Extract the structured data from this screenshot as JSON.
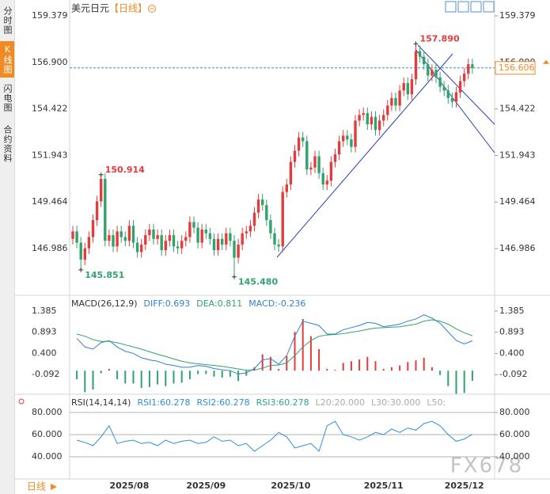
{
  "sidebar": {
    "tabs": [
      "分时图",
      "K线图",
      "闪电图",
      "合约资料"
    ]
  },
  "footer": {
    "tab": "日线"
  },
  "watermark": "FX678",
  "chart_data": [
    {
      "type": "candlestick",
      "title": "美元日元",
      "period": "【日线】",
      "up_color": "#e23c3c",
      "down_color": "#2fa36b",
      "categories": [
        null,
        null,
        null,
        null,
        null,
        null,
        null,
        null,
        null,
        null,
        null,
        null,
        null,
        null,
        "2025/08",
        null,
        null,
        null,
        null,
        null,
        null,
        null,
        null,
        null,
        null,
        null,
        null,
        null,
        null,
        null,
        null,
        null,
        null,
        "2025/09",
        null,
        null,
        null,
        null,
        null,
        null,
        null,
        null,
        null,
        null,
        null,
        null,
        null,
        null,
        null,
        null,
        null,
        null,
        null,
        null,
        "2025/10",
        null,
        null,
        null,
        null,
        null,
        null,
        null,
        null,
        null,
        null,
        null,
        null,
        null,
        null,
        null,
        null,
        null,
        null,
        null,
        null,
        null,
        null,
        "2025/11",
        null,
        null,
        null,
        null,
        null,
        null,
        null,
        null,
        null,
        null,
        null,
        null,
        null,
        null,
        null,
        null,
        null,
        null,
        null,
        "2025/12",
        null,
        null
      ],
      "open": [
        147.5,
        147.9,
        147.3,
        146.4,
        147.0,
        147.6,
        148.5,
        149.5,
        150.7,
        147.4,
        147.7,
        147.1,
        147.9,
        147.6,
        147.4,
        148.2,
        147.3,
        146.8,
        147.2,
        147.7,
        148.0,
        147.5,
        147.7,
        146.9,
        147.4,
        147.7,
        147.1,
        147.0,
        147.4,
        147.6,
        148.4,
        148.1,
        147.3,
        148.0,
        147.8,
        147.5,
        146.9,
        147.5,
        147.2,
        147.8,
        147.4,
        146.5,
        147.2,
        147.8,
        147.9,
        148.2,
        148.9,
        149.6,
        149.3,
        148.5,
        147.8,
        147.2,
        147.1,
        150.0,
        150.4,
        151.6,
        152.2,
        152.9,
        152.7,
        151.2,
        151.3,
        151.9,
        151.0,
        150.4,
        150.6,
        151.6,
        152.0,
        152.7,
        153.0,
        152.8,
        152.4,
        153.8,
        154.1,
        154.2,
        153.6,
        154.0,
        153.3,
        153.8,
        154.1,
        154.6,
        155.0,
        154.6,
        155.4,
        155.8,
        155.2,
        156.0,
        157.5,
        157.2,
        156.8,
        156.2,
        156.5,
        156.1,
        155.6,
        155.4,
        155.0,
        154.8,
        155.3,
        155.9,
        156.3,
        156.8
      ],
      "high": [
        148.2,
        148.2,
        147.6,
        147.3,
        147.9,
        148.8,
        149.8,
        150.914,
        151.0,
        148.0,
        148.0,
        148.2,
        148.2,
        147.9,
        148.5,
        148.5,
        147.6,
        147.5,
        148.0,
        148.3,
        148.3,
        148.0,
        148.0,
        147.7,
        148.0,
        148.0,
        147.4,
        147.7,
        147.9,
        148.7,
        148.7,
        148.4,
        148.3,
        148.3,
        148.1,
        147.8,
        147.8,
        147.8,
        148.1,
        148.1,
        147.7,
        147.5,
        148.1,
        148.2,
        148.5,
        149.2,
        149.9,
        149.9,
        149.6,
        148.8,
        148.1,
        147.5,
        150.3,
        150.7,
        151.9,
        152.5,
        153.2,
        153.2,
        153.0,
        151.6,
        152.2,
        152.2,
        151.3,
        150.9,
        151.9,
        152.3,
        153.0,
        153.3,
        153.3,
        153.1,
        154.1,
        154.4,
        154.5,
        154.5,
        154.3,
        154.3,
        154.1,
        154.4,
        154.9,
        155.3,
        155.3,
        155.7,
        156.1,
        156.1,
        156.3,
        157.89,
        157.8,
        157.5,
        157.1,
        156.8,
        156.8,
        156.4,
        155.9,
        155.7,
        155.3,
        155.6,
        156.2,
        156.6,
        157.1,
        157.1
      ],
      "low": [
        147.2,
        147.0,
        145.851,
        146.1,
        146.7,
        147.3,
        148.2,
        149.2,
        147.1,
        147.1,
        146.8,
        146.8,
        147.3,
        147.1,
        147.1,
        147.0,
        146.5,
        146.5,
        146.9,
        147.4,
        147.2,
        147.2,
        146.6,
        146.6,
        147.1,
        146.8,
        146.7,
        146.7,
        147.1,
        147.3,
        147.8,
        147.0,
        147.0,
        147.5,
        147.2,
        146.6,
        146.6,
        146.9,
        146.9,
        147.1,
        145.48,
        146.2,
        146.9,
        147.5,
        147.6,
        147.9,
        148.6,
        149.0,
        148.2,
        147.5,
        146.9,
        146.8,
        146.8,
        149.7,
        150.1,
        151.3,
        151.9,
        152.4,
        150.9,
        150.9,
        151.0,
        150.7,
        150.1,
        150.1,
        150.3,
        151.3,
        151.7,
        152.4,
        152.5,
        152.1,
        152.1,
        153.5,
        153.8,
        153.3,
        153.3,
        153.0,
        153.0,
        153.5,
        153.8,
        154.3,
        154.3,
        154.3,
        155.1,
        154.9,
        154.9,
        155.7,
        156.9,
        156.5,
        155.9,
        155.9,
        155.8,
        155.3,
        155.1,
        154.7,
        154.5,
        154.5,
        155.0,
        155.6,
        156.0,
        156.306
      ],
      "close": [
        147.9,
        147.3,
        146.4,
        147.0,
        147.6,
        148.5,
        149.5,
        150.7,
        147.4,
        147.7,
        147.1,
        147.9,
        147.6,
        147.4,
        148.2,
        147.3,
        146.8,
        147.2,
        147.7,
        148.0,
        147.5,
        147.7,
        146.9,
        147.4,
        147.7,
        147.1,
        147.0,
        147.4,
        147.6,
        148.4,
        148.1,
        147.3,
        148.0,
        147.8,
        147.5,
        146.9,
        147.5,
        147.2,
        147.8,
        147.4,
        146.5,
        147.2,
        147.8,
        147.9,
        148.2,
        148.9,
        149.6,
        149.3,
        148.5,
        147.8,
        147.2,
        147.1,
        150.0,
        150.4,
        151.6,
        152.2,
        152.9,
        152.7,
        151.2,
        151.3,
        151.9,
        151.0,
        150.4,
        150.6,
        151.6,
        152.0,
        152.7,
        153.0,
        152.8,
        152.4,
        153.8,
        154.1,
        154.2,
        153.6,
        154.0,
        153.3,
        153.8,
        154.1,
        154.6,
        155.0,
        154.6,
        155.4,
        155.8,
        155.2,
        156.0,
        157.5,
        157.2,
        156.8,
        156.2,
        156.5,
        156.1,
        155.6,
        155.4,
        155.0,
        154.8,
        155.3,
        155.9,
        156.3,
        156.8,
        156.606
      ],
      "ylim": [
        144.541,
        160.011
      ],
      "yticks": [
        159.379,
        {
          "value": 156.9,
          "label": "156.900"
        },
        154.422,
        151.943,
        149.464,
        146.986
      ],
      "last_price": {
        "value": 156.606,
        "label": "156.606",
        "color": "#f08a24",
        "line_color": "#3a8fb7"
      },
      "annotations": [
        {
          "value": 157.89,
          "label": "157.890"
        },
        {
          "value": 150.914,
          "label": "150.914"
        },
        {
          "value": 145.851,
          "label": "145.851"
        },
        {
          "value": 145.48,
          "label": "145.480"
        }
      ]
    },
    {
      "type": "macd",
      "title": "MACD(26,12,9)",
      "x": [
        1,
        3,
        5,
        7,
        9,
        11,
        13,
        15,
        17,
        19,
        21,
        23,
        25,
        27,
        29,
        31,
        33,
        35,
        37,
        39,
        41,
        43,
        45,
        47,
        49,
        51,
        53,
        55,
        57,
        59,
        61,
        63,
        65,
        67,
        69,
        71,
        73,
        75,
        77,
        79,
        81,
        83,
        85,
        87,
        89,
        91,
        93,
        95,
        97,
        99
      ],
      "series": [
        {
          "name": "DIFF:0.693",
          "color": "#2f7fd6",
          "style": "line",
          "values": [
            0.75,
            0.55,
            0.5,
            0.65,
            0.7,
            0.55,
            0.45,
            0.4,
            0.3,
            0.25,
            0.22,
            0.15,
            0.12,
            0.08,
            0.08,
            0.12,
            0.1,
            0.05,
            0.02,
            0.0,
            -0.08,
            -0.05,
            0.05,
            0.25,
            0.28,
            0.15,
            0.35,
            0.8,
            1.15,
            1.1,
            1.05,
            0.85,
            0.85,
            0.95,
            1.0,
            1.05,
            1.12,
            1.1,
            1.02,
            1.05,
            1.08,
            1.15,
            1.2,
            1.3,
            1.22,
            1.1,
            0.9,
            0.7,
            0.62,
            0.693
          ]
        },
        {
          "name": "DEA:0.811",
          "color": "#2fa36b",
          "style": "line",
          "values": [
            0.85,
            0.8,
            0.72,
            0.68,
            0.68,
            0.65,
            0.6,
            0.55,
            0.5,
            0.44,
            0.38,
            0.33,
            0.27,
            0.22,
            0.18,
            0.16,
            0.14,
            0.12,
            0.1,
            0.07,
            0.04,
            0.01,
            0.01,
            0.06,
            0.12,
            0.13,
            0.18,
            0.35,
            0.55,
            0.7,
            0.8,
            0.83,
            0.84,
            0.86,
            0.89,
            0.92,
            0.96,
            0.99,
            1.0,
            1.01,
            1.02,
            1.05,
            1.08,
            1.15,
            1.18,
            1.15,
            1.08,
            0.97,
            0.88,
            0.811
          ]
        },
        {
          "name": "MACD:-0.236",
          "color": "#2f7fd6",
          "style": "bar",
          "values": [
            -0.2,
            -0.5,
            -0.44,
            -0.06,
            0.04,
            -0.2,
            -0.3,
            -0.3,
            -0.4,
            -0.38,
            -0.32,
            -0.36,
            -0.3,
            -0.28,
            -0.2,
            -0.08,
            -0.08,
            -0.14,
            -0.16,
            -0.14,
            -0.24,
            -0.12,
            0.08,
            0.38,
            0.32,
            0.04,
            0.34,
            0.9,
            1.2,
            0.8,
            0.5,
            0.04,
            0.02,
            0.18,
            0.22,
            0.26,
            0.32,
            0.22,
            0.04,
            0.08,
            0.12,
            0.2,
            0.24,
            0.3,
            0.08,
            -0.1,
            -0.36,
            -0.54,
            -0.52,
            -0.236
          ]
        }
      ],
      "ylim": [
        -0.53,
        1.659
      ],
      "yticks": [
        1.385,
        0.893,
        {
          "value": 0.4,
          "label": "0.400"
        },
        -0.092
      ]
    },
    {
      "type": "rsi",
      "title": "RSI(14,14,14)",
      "x": [
        1,
        3,
        5,
        7,
        9,
        11,
        13,
        15,
        17,
        19,
        21,
        23,
        25,
        27,
        29,
        31,
        33,
        35,
        37,
        39,
        41,
        43,
        45,
        47,
        49,
        51,
        53,
        55,
        57,
        59,
        61,
        63,
        65,
        67,
        69,
        71,
        73,
        75,
        77,
        79,
        81,
        83,
        85,
        87,
        89,
        91,
        93,
        95,
        97,
        99
      ],
      "series": [
        {
          "name": "RSI1:60.278",
          "color": "#2f8fd6",
          "values": [
            55,
            53,
            50,
            58,
            68,
            52,
            54,
            55,
            52,
            53,
            50,
            55,
            52,
            54,
            55,
            52,
            53,
            58,
            54,
            55,
            50,
            52,
            45,
            50,
            55,
            62,
            58,
            48,
            50,
            52,
            45,
            68,
            72,
            60,
            58,
            55,
            58,
            62,
            60,
            65,
            62,
            66,
            64,
            70,
            72,
            68,
            60,
            54,
            56,
            60.278
          ]
        }
      ],
      "legend_extra": [
        {
          "text": "RSI2:60.278",
          "color": "#2f8fd6"
        },
        {
          "text": "RSI3:60.278",
          "color": "#2fa39a"
        },
        {
          "text": "L20:20.000",
          "color": "#aaaaaa"
        },
        {
          "text": "L30:30.000",
          "color": "#aaaaaa"
        },
        {
          "text": "L50:",
          "color": "#aaaaaa"
        }
      ],
      "ylim": [
        20,
        95
      ],
      "yticks": [
        {
          "value": 80,
          "label": "80.000"
        },
        {
          "value": 60,
          "label": "60.000"
        },
        {
          "value": 40,
          "label": "40.000"
        }
      ],
      "grid": true
    }
  ]
}
